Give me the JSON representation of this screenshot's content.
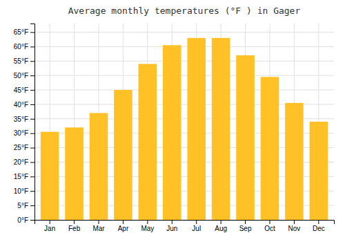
{
  "chart_data": {
    "type": "bar",
    "title": "Average monthly temperatures (°F ) in Gager",
    "categories": [
      "Jan",
      "Feb",
      "Mar",
      "Apr",
      "May",
      "Jun",
      "Jul",
      "Aug",
      "Sep",
      "Oct",
      "Nov",
      "Dec"
    ],
    "values": [
      30.5,
      32.0,
      37.0,
      45.0,
      54.0,
      60.5,
      63.0,
      63.0,
      57.0,
      49.5,
      40.5,
      34.0
    ],
    "color": "#FFC125",
    "ylim": [
      0,
      68
    ],
    "yticks": [
      {
        "value": 0,
        "label": "0°F"
      },
      {
        "value": 5,
        "label": "5°F"
      },
      {
        "value": 10,
        "label": "10°F"
      },
      {
        "value": 15,
        "label": "15°F"
      },
      {
        "value": 20,
        "label": "20°F"
      },
      {
        "value": 25,
        "label": "25°F"
      },
      {
        "value": 30,
        "label": "30°F"
      },
      {
        "value": 35,
        "label": "35°F"
      },
      {
        "value": 40,
        "label": "40°F"
      },
      {
        "value": 45,
        "label": "45°F"
      },
      {
        "value": 50,
        "label": "50°F"
      },
      {
        "value": 55,
        "label": "55°F"
      },
      {
        "value": 60,
        "label": "60°F"
      },
      {
        "value": 65,
        "label": "65°F"
      }
    ],
    "grid": true
  }
}
